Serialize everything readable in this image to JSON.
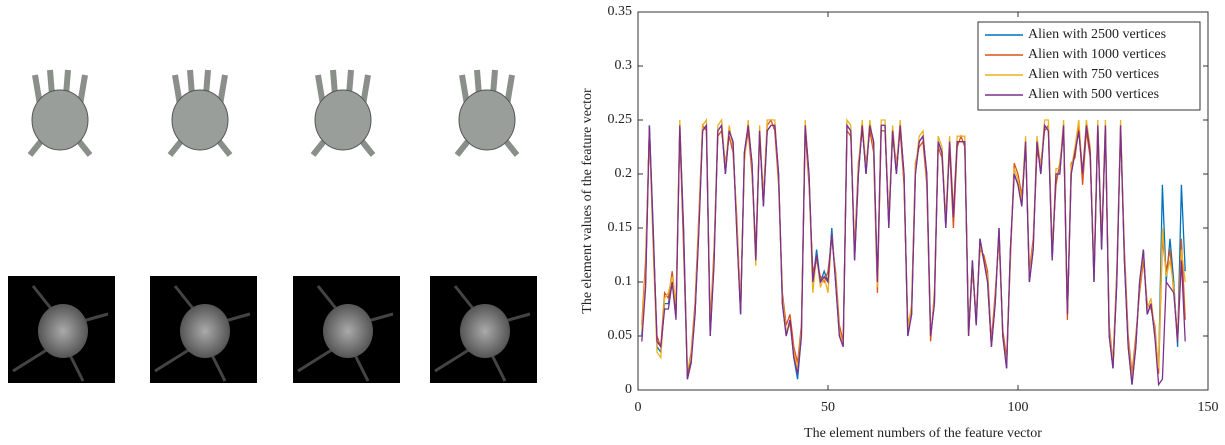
{
  "chart_data": {
    "type": "line",
    "xlabel": "The element numbers of the feature vector",
    "ylabel": "The element values of the feature vector",
    "xlim": [
      0,
      150
    ],
    "ylim": [
      0,
      0.35
    ],
    "xticks": [
      0,
      50,
      100,
      150
    ],
    "yticks": [
      0,
      0.05,
      0.1,
      0.15,
      0.2,
      0.25,
      0.3,
      0.35
    ],
    "legend": "upper-right",
    "x": [
      1,
      2,
      3,
      4,
      5,
      6,
      7,
      8,
      9,
      10,
      11,
      12,
      13,
      14,
      15,
      16,
      17,
      18,
      19,
      20,
      21,
      22,
      23,
      24,
      25,
      26,
      27,
      28,
      29,
      30,
      31,
      32,
      33,
      34,
      35,
      36,
      37,
      38,
      39,
      40,
      41,
      42,
      43,
      44,
      45,
      46,
      47,
      48,
      49,
      50,
      51,
      52,
      53,
      54,
      55,
      56,
      57,
      58,
      59,
      60,
      61,
      62,
      63,
      64,
      65,
      66,
      67,
      68,
      69,
      70,
      71,
      72,
      73,
      74,
      75,
      76,
      77,
      78,
      79,
      80,
      81,
      82,
      83,
      84,
      85,
      86,
      87,
      88,
      89,
      90,
      91,
      92,
      93,
      94,
      95,
      96,
      97,
      98,
      99,
      100,
      101,
      102,
      103,
      104,
      105,
      106,
      107,
      108,
      109,
      110,
      111,
      112,
      113,
      114,
      115,
      116,
      117,
      118,
      119,
      120,
      121,
      122,
      123,
      124,
      125,
      126,
      127,
      128,
      129,
      130,
      131,
      132,
      133,
      134,
      135,
      136,
      137,
      138,
      139,
      140,
      141,
      142,
      143,
      144
    ],
    "series": [
      {
        "name": "Alien with 2500 vertices",
        "color": "#0072BD",
        "values": [
          0.05,
          0.1,
          0.245,
          0.15,
          0.04,
          0.035,
          0.08,
          0.08,
          0.1,
          0.07,
          0.245,
          0.15,
          0.01,
          0.03,
          0.07,
          0.15,
          0.24,
          0.245,
          0.05,
          0.12,
          0.24,
          0.245,
          0.2,
          0.24,
          0.23,
          0.15,
          0.07,
          0.22,
          0.245,
          0.21,
          0.12,
          0.24,
          0.17,
          0.24,
          0.245,
          0.245,
          0.2,
          0.08,
          0.05,
          0.065,
          0.03,
          0.01,
          0.05,
          0.245,
          0.2,
          0.1,
          0.13,
          0.1,
          0.11,
          0.1,
          0.15,
          0.1,
          0.05,
          0.04,
          0.245,
          0.24,
          0.12,
          0.2,
          0.245,
          0.2,
          0.245,
          0.23,
          0.1,
          0.245,
          0.245,
          0.15,
          0.24,
          0.2,
          0.245,
          0.2,
          0.05,
          0.07,
          0.2,
          0.23,
          0.235,
          0.2,
          0.05,
          0.08,
          0.23,
          0.22,
          0.15,
          0.23,
          0.16,
          0.23,
          0.23,
          0.23,
          0.05,
          0.12,
          0.06,
          0.14,
          0.12,
          0.1,
          0.04,
          0.08,
          0.15,
          0.05,
          0.02,
          0.13,
          0.2,
          0.19,
          0.17,
          0.23,
          0.1,
          0.13,
          0.23,
          0.2,
          0.245,
          0.24,
          0.12,
          0.2,
          0.2,
          0.245,
          0.07,
          0.2,
          0.22,
          0.24,
          0.2,
          0.245,
          0.22,
          0.1,
          0.245,
          0.13,
          0.245,
          0.05,
          0.02,
          0.1,
          0.245,
          0.12,
          0.04,
          0.005,
          0.04,
          0.1,
          0.13,
          0.07,
          0.08,
          0.05,
          0.02,
          0.19,
          0.1,
          0.14,
          0.1,
          0.04,
          0.19,
          0.11
        ]
      },
      {
        "name": "Alien with 1000 vertices",
        "color": "#D95319",
        "values": [
          0.06,
          0.12,
          0.24,
          0.14,
          0.05,
          0.04,
          0.09,
          0.085,
          0.11,
          0.075,
          0.24,
          0.13,
          0.015,
          0.035,
          0.08,
          0.16,
          0.245,
          0.24,
          0.06,
          0.13,
          0.235,
          0.24,
          0.21,
          0.235,
          0.22,
          0.16,
          0.075,
          0.215,
          0.24,
          0.2,
          0.13,
          0.235,
          0.18,
          0.245,
          0.25,
          0.24,
          0.19,
          0.09,
          0.06,
          0.07,
          0.04,
          0.025,
          0.06,
          0.24,
          0.19,
          0.11,
          0.12,
          0.105,
          0.1,
          0.11,
          0.14,
          0.11,
          0.06,
          0.045,
          0.24,
          0.235,
          0.13,
          0.21,
          0.24,
          0.21,
          0.24,
          0.22,
          0.09,
          0.24,
          0.24,
          0.16,
          0.235,
          0.21,
          0.24,
          0.19,
          0.06,
          0.075,
          0.21,
          0.225,
          0.23,
          0.19,
          0.045,
          0.09,
          0.225,
          0.215,
          0.16,
          0.225,
          0.15,
          0.225,
          0.235,
          0.225,
          0.055,
          0.11,
          0.07,
          0.13,
          0.125,
          0.11,
          0.045,
          0.09,
          0.14,
          0.055,
          0.03,
          0.12,
          0.21,
          0.2,
          0.18,
          0.225,
          0.11,
          0.14,
          0.22,
          0.21,
          0.24,
          0.245,
          0.13,
          0.19,
          0.21,
          0.24,
          0.065,
          0.21,
          0.215,
          0.245,
          0.19,
          0.24,
          0.215,
          0.11,
          0.24,
          0.14,
          0.24,
          0.06,
          0.025,
          0.11,
          0.24,
          0.13,
          0.05,
          0.015,
          0.05,
          0.09,
          0.12,
          0.08,
          0.075,
          0.06,
          0.015,
          0.14,
          0.11,
          0.13,
          0.09,
          0.05,
          0.14,
          0.065
        ]
      },
      {
        "name": "Alien with 750 vertices",
        "color": "#EDB120",
        "values": [
          0.055,
          0.11,
          0.24,
          0.13,
          0.035,
          0.03,
          0.085,
          0.09,
          0.105,
          0.08,
          0.25,
          0.14,
          0.02,
          0.03,
          0.075,
          0.155,
          0.245,
          0.25,
          0.055,
          0.125,
          0.245,
          0.25,
          0.205,
          0.245,
          0.225,
          0.155,
          0.08,
          0.21,
          0.25,
          0.205,
          0.115,
          0.245,
          0.175,
          0.25,
          0.25,
          0.25,
          0.195,
          0.085,
          0.055,
          0.06,
          0.035,
          0.02,
          0.055,
          0.25,
          0.195,
          0.09,
          0.125,
          0.095,
          0.105,
          0.09,
          0.145,
          0.105,
          0.055,
          0.04,
          0.25,
          0.245,
          0.125,
          0.205,
          0.25,
          0.205,
          0.25,
          0.225,
          0.095,
          0.25,
          0.25,
          0.155,
          0.245,
          0.205,
          0.25,
          0.195,
          0.055,
          0.08,
          0.205,
          0.235,
          0.24,
          0.195,
          0.05,
          0.085,
          0.235,
          0.225,
          0.155,
          0.235,
          0.165,
          0.235,
          0.235,
          0.235,
          0.05,
          0.115,
          0.065,
          0.135,
          0.12,
          0.105,
          0.04,
          0.085,
          0.145,
          0.05,
          0.025,
          0.125,
          0.205,
          0.195,
          0.175,
          0.235,
          0.105,
          0.135,
          0.235,
          0.205,
          0.25,
          0.25,
          0.125,
          0.205,
          0.205,
          0.25,
          0.07,
          0.205,
          0.225,
          0.25,
          0.2,
          0.25,
          0.225,
          0.105,
          0.25,
          0.135,
          0.25,
          0.055,
          0.025,
          0.105,
          0.25,
          0.125,
          0.045,
          0.01,
          0.045,
          0.095,
          0.125,
          0.075,
          0.085,
          0.055,
          0.02,
          0.15,
          0.105,
          0.12,
          0.095,
          0.045,
          0.13,
          0.1
        ]
      },
      {
        "name": "Alien with 500 vertices",
        "color": "#7E2F8E",
        "values": [
          0.045,
          0.095,
          0.245,
          0.145,
          0.045,
          0.04,
          0.075,
          0.075,
          0.1,
          0.065,
          0.245,
          0.145,
          0.01,
          0.025,
          0.07,
          0.145,
          0.24,
          0.245,
          0.05,
          0.115,
          0.24,
          0.245,
          0.2,
          0.24,
          0.23,
          0.145,
          0.07,
          0.22,
          0.245,
          0.21,
          0.12,
          0.24,
          0.17,
          0.24,
          0.245,
          0.245,
          0.2,
          0.08,
          0.05,
          0.065,
          0.03,
          0.015,
          0.05,
          0.245,
          0.2,
          0.1,
          0.125,
          0.1,
          0.105,
          0.1,
          0.145,
          0.1,
          0.05,
          0.04,
          0.245,
          0.24,
          0.12,
          0.2,
          0.245,
          0.2,
          0.245,
          0.23,
          0.1,
          0.245,
          0.245,
          0.15,
          0.24,
          0.2,
          0.245,
          0.2,
          0.05,
          0.07,
          0.2,
          0.23,
          0.235,
          0.2,
          0.05,
          0.08,
          0.23,
          0.22,
          0.15,
          0.23,
          0.16,
          0.23,
          0.23,
          0.23,
          0.05,
          0.12,
          0.06,
          0.14,
          0.12,
          0.1,
          0.04,
          0.08,
          0.15,
          0.05,
          0.02,
          0.13,
          0.2,
          0.19,
          0.17,
          0.23,
          0.1,
          0.13,
          0.23,
          0.2,
          0.245,
          0.24,
          0.12,
          0.2,
          0.2,
          0.245,
          0.07,
          0.2,
          0.22,
          0.24,
          0.2,
          0.245,
          0.22,
          0.1,
          0.245,
          0.13,
          0.245,
          0.05,
          0.02,
          0.1,
          0.245,
          0.12,
          0.04,
          0.005,
          0.04,
          0.1,
          0.13,
          0.07,
          0.08,
          0.05,
          0.005,
          0.01,
          0.1,
          0.095,
          0.09,
          0.045,
          0.12,
          0.045
        ]
      }
    ]
  }
}
